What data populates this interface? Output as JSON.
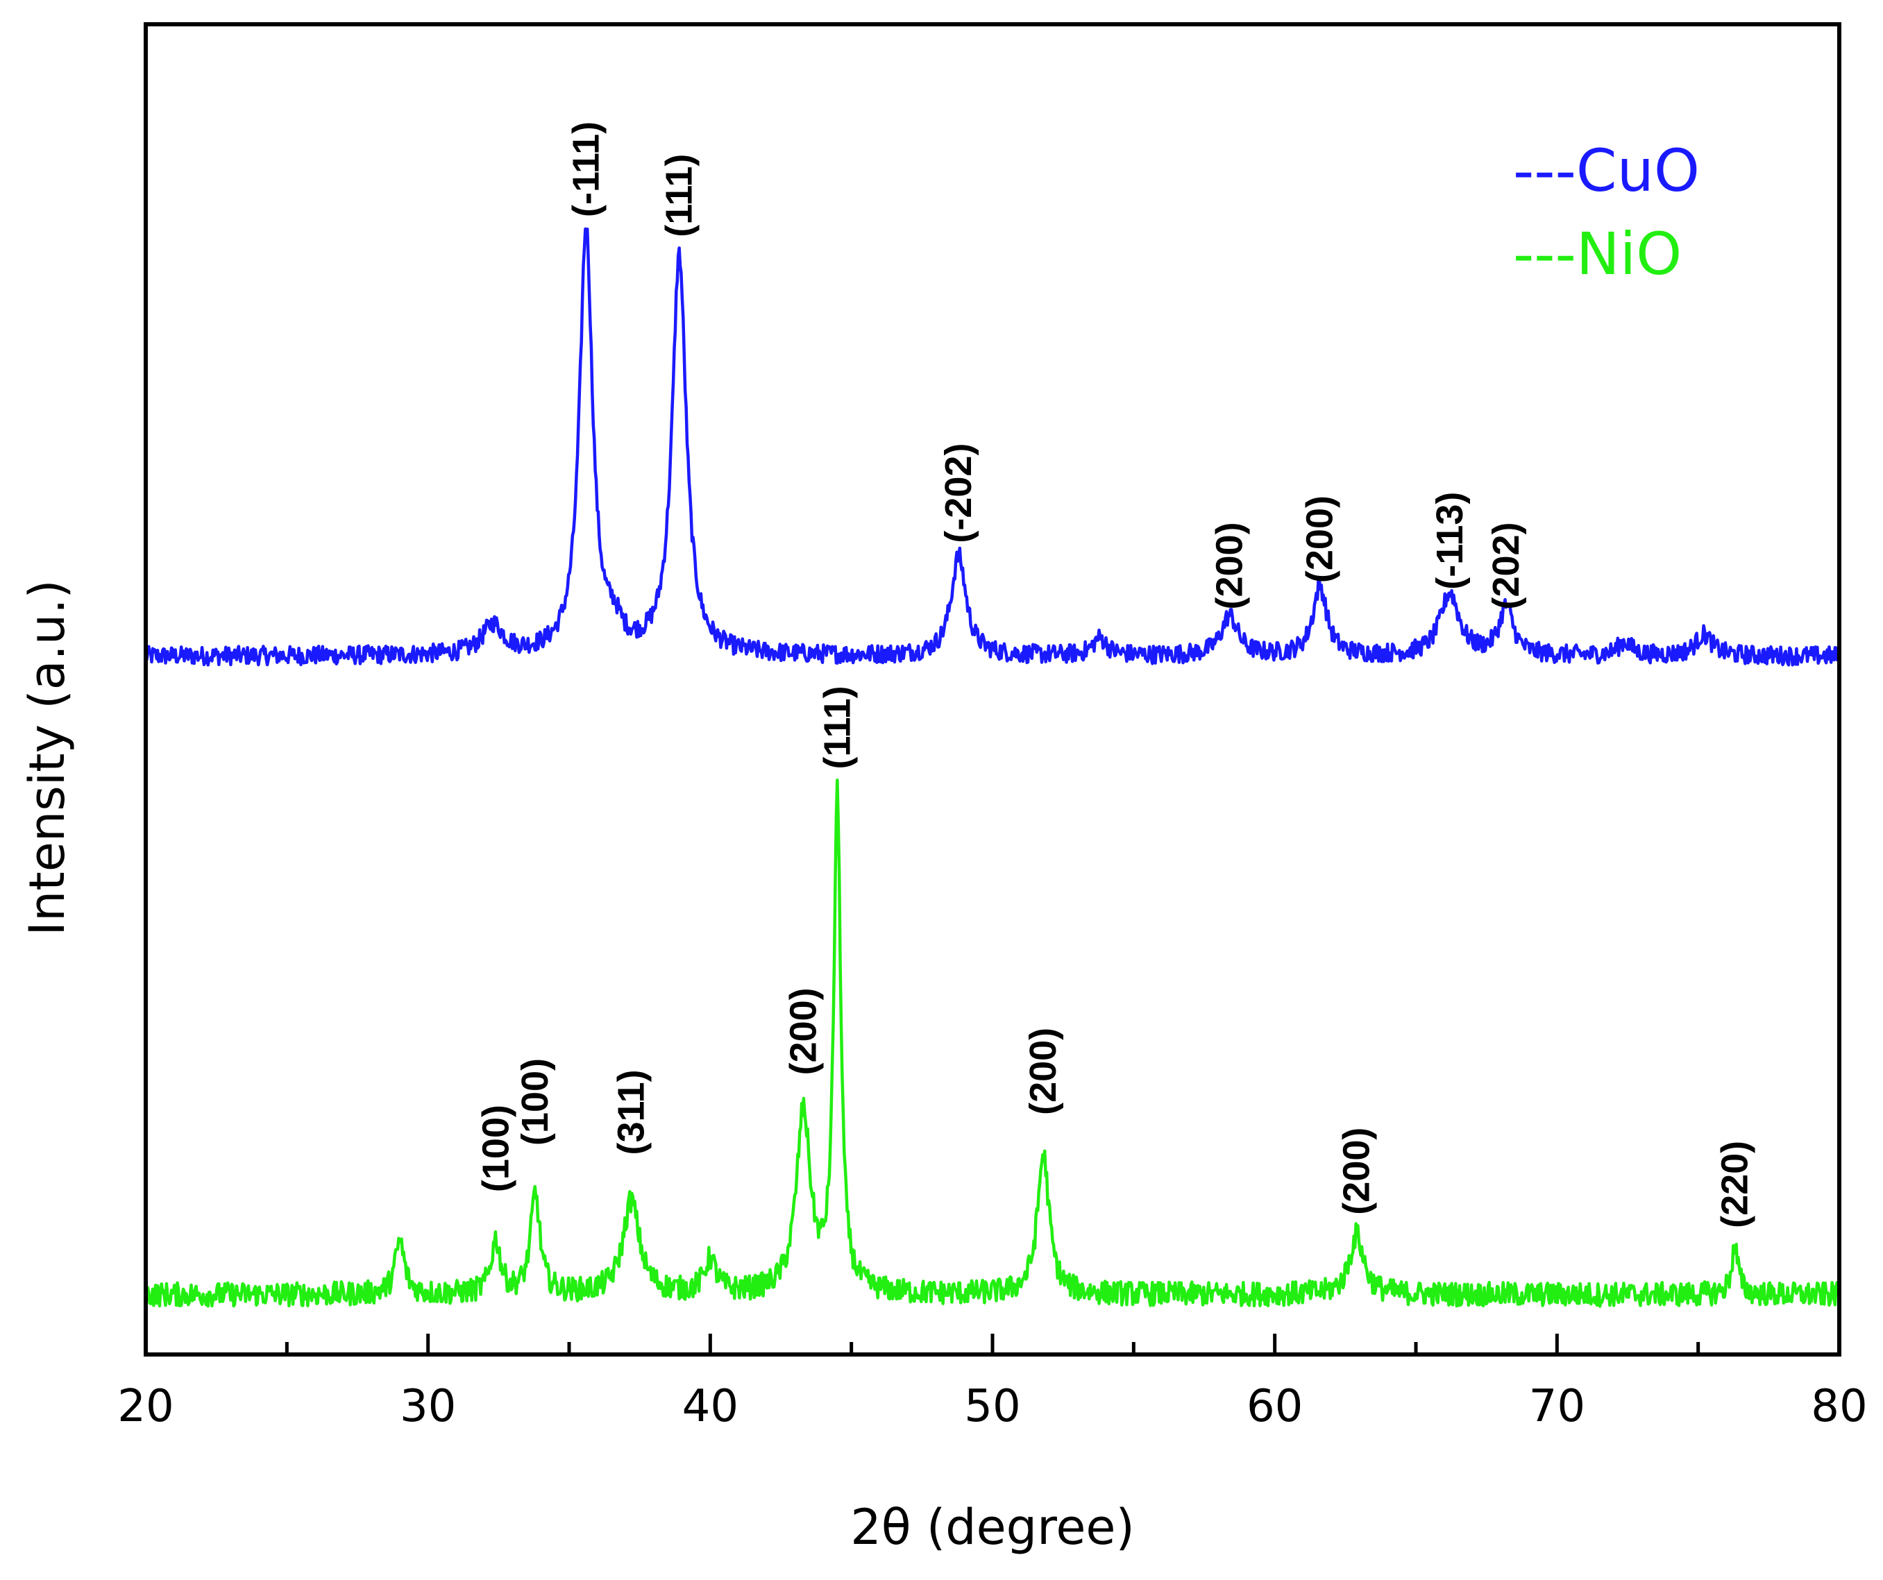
{
  "chart_data": {
    "type": "line",
    "xlabel": "2θ (degree)",
    "ylabel": "Intensity (a.u.)",
    "xlim": [
      20,
      80
    ],
    "xticks": [
      "20",
      "30",
      "40",
      "50",
      "60",
      "70",
      "80"
    ],
    "ylim": [
      0,
      100
    ],
    "grid": false,
    "legend": {
      "position": "top-right",
      "entries": [
        {
          "label": "---CuO",
          "color": "#1a1aff"
        },
        {
          "label": "---NiO",
          "color": "#22ee11"
        }
      ]
    },
    "series": [
      {
        "name": "CuO",
        "color": "#1a1aff",
        "baseline": 52.5,
        "noise": 0.7,
        "peaks": [
          {
            "x": 32.3,
            "h": 2.2,
            "w": 0.45
          },
          {
            "x": 35.6,
            "h": 32.0,
            "w": 0.28
          },
          {
            "x": 36.6,
            "h": 1.5,
            "w": 0.3
          },
          {
            "x": 38.9,
            "h": 30.0,
            "w": 0.3
          },
          {
            "x": 48.8,
            "h": 7.5,
            "w": 0.32
          },
          {
            "x": 53.8,
            "h": 1.3,
            "w": 0.3
          },
          {
            "x": 58.4,
            "h": 3.0,
            "w": 0.35
          },
          {
            "x": 61.6,
            "h": 5.2,
            "w": 0.3
          },
          {
            "x": 66.2,
            "h": 4.7,
            "w": 0.4
          },
          {
            "x": 68.2,
            "h": 3.6,
            "w": 0.3
          },
          {
            "x": 72.4,
            "h": 1.0,
            "w": 0.3
          },
          {
            "x": 75.2,
            "h": 1.6,
            "w": 0.35
          }
        ],
        "peak_labels": [
          {
            "x": 35.6,
            "y": 85.5,
            "text": "(-111)"
          },
          {
            "x": 38.9,
            "y": 84.0,
            "text": "(111)"
          },
          {
            "x": 48.8,
            "y": 61.0,
            "text": "(-202)"
          },
          {
            "x": 58.4,
            "y": 56.0,
            "text": "(200)"
          },
          {
            "x": 61.6,
            "y": 58.0,
            "text": "(200)"
          },
          {
            "x": 66.2,
            "y": 57.5,
            "text": "(-113)"
          },
          {
            "x": 68.2,
            "y": 56.0,
            "text": "(202)"
          }
        ]
      },
      {
        "name": "NiO",
        "color": "#22ee11",
        "baseline": 4.5,
        "noise": 0.9,
        "peaks": [
          {
            "x": 29.0,
            "h": 4.0,
            "w": 0.2
          },
          {
            "x": 32.4,
            "h": 4.0,
            "w": 0.2
          },
          {
            "x": 33.8,
            "h": 7.5,
            "w": 0.2
          },
          {
            "x": 37.2,
            "h": 7.0,
            "w": 0.35
          },
          {
            "x": 40.0,
            "h": 2.5,
            "w": 0.25
          },
          {
            "x": 43.3,
            "h": 13.5,
            "w": 0.3
          },
          {
            "x": 44.5,
            "h": 37.0,
            "w": 0.15
          },
          {
            "x": 51.8,
            "h": 10.5,
            "w": 0.25
          },
          {
            "x": 62.9,
            "h": 4.5,
            "w": 0.3
          },
          {
            "x": 76.3,
            "h": 3.5,
            "w": 0.15
          }
        ],
        "peak_labels": [
          {
            "x": 32.4,
            "y": 12.2,
            "text": "(100)"
          },
          {
            "x": 33.8,
            "y": 15.7,
            "text": "(100)"
          },
          {
            "x": 37.2,
            "y": 15.0,
            "text": "(311)"
          },
          {
            "x": 43.3,
            "y": 21.0,
            "text": "(200)"
          },
          {
            "x": 44.5,
            "y": 44.0,
            "text": "(111)"
          },
          {
            "x": 51.8,
            "y": 18.0,
            "text": "(200)"
          },
          {
            "x": 62.9,
            "y": 10.5,
            "text": "(200)"
          },
          {
            "x": 76.3,
            "y": 9.5,
            "text": "(220)"
          }
        ]
      }
    ]
  }
}
